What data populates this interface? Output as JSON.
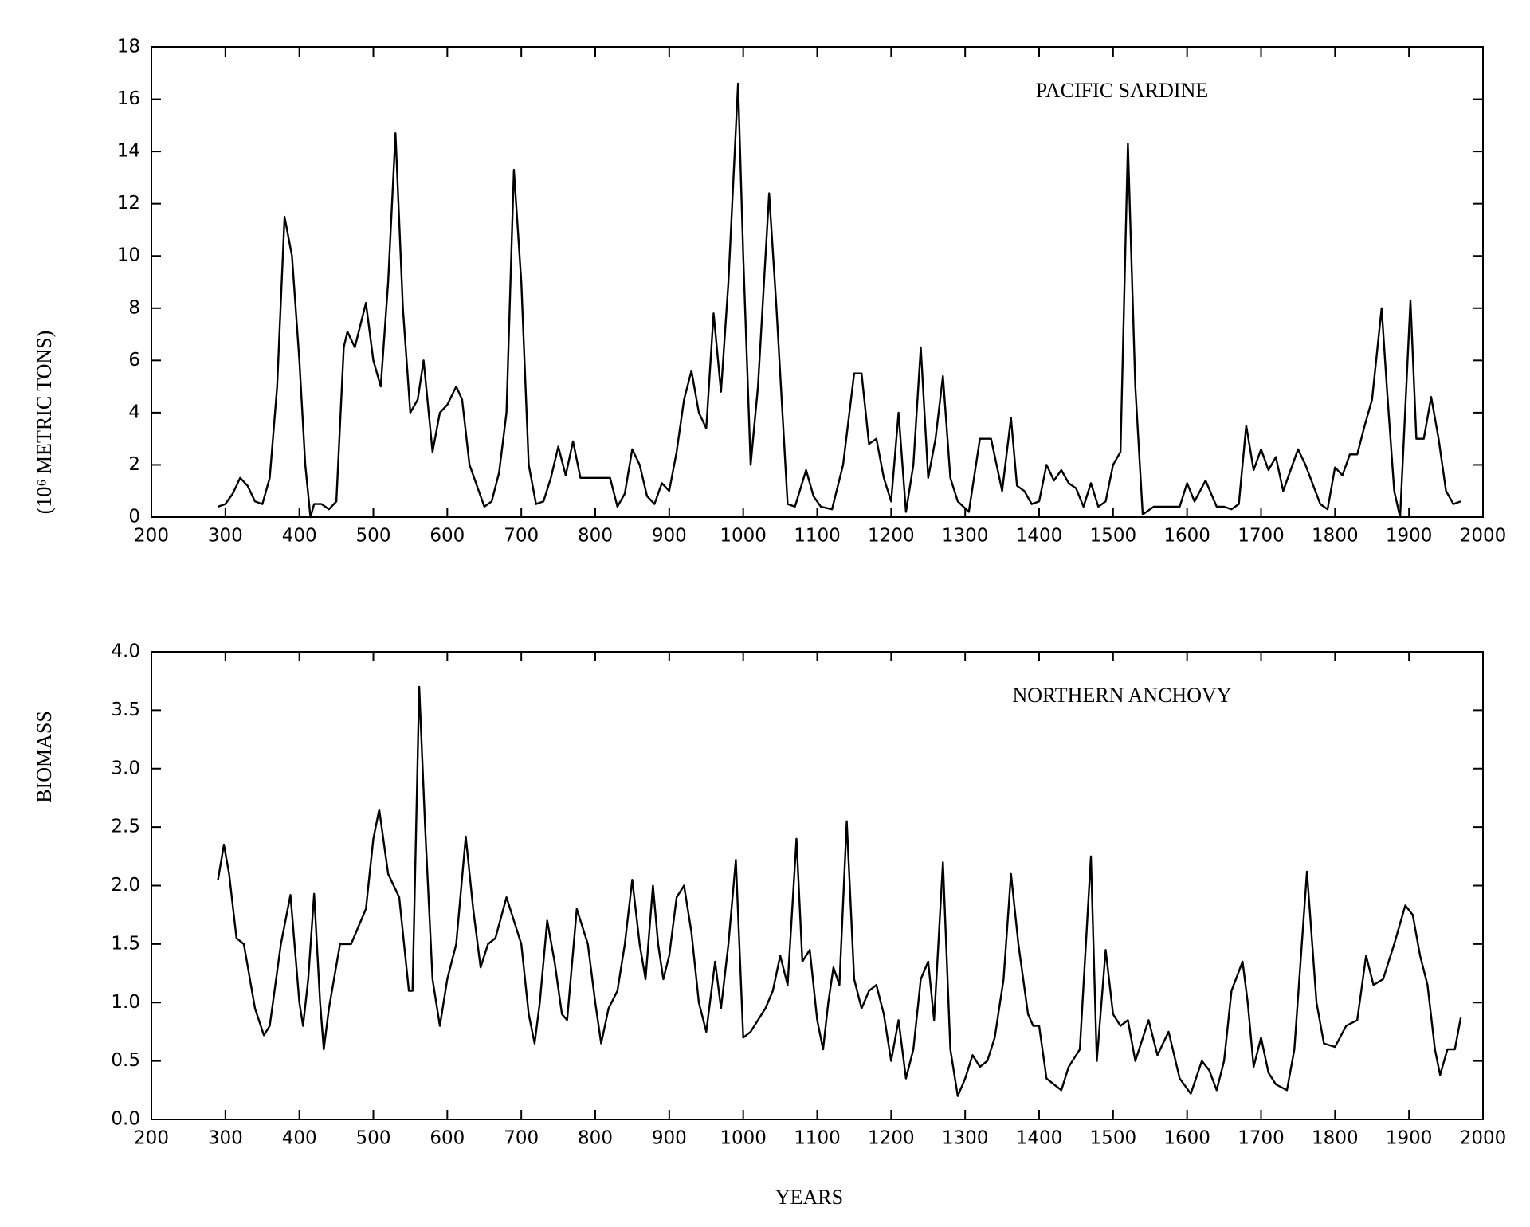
{
  "chart_data": [
    {
      "type": "line",
      "label": "PACIFIC SARDINE",
      "ylabel": [
        "BIOMASS",
        "(10⁶ METRIC TONS)"
      ],
      "xlim": [
        200,
        2000
      ],
      "xticks": [
        200,
        300,
        400,
        500,
        600,
        700,
        800,
        900,
        1000,
        1100,
        1200,
        1300,
        1400,
        1500,
        1600,
        1700,
        1800,
        1900,
        2000
      ],
      "ylim": [
        0,
        18
      ],
      "yticks": [
        0,
        2,
        4,
        6,
        8,
        10,
        12,
        14,
        16,
        18
      ],
      "series": [
        {
          "color": "#000000",
          "x": [
            290,
            300,
            310,
            320,
            330,
            340,
            350,
            360,
            370,
            380,
            390,
            400,
            408,
            415,
            420,
            430,
            440,
            450,
            460,
            465,
            475,
            490,
            500,
            510,
            520,
            530,
            540,
            550,
            560,
            568,
            580,
            590,
            600,
            612,
            620,
            630,
            650,
            660,
            670,
            680,
            690,
            700,
            710,
            720,
            730,
            740,
            750,
            760,
            770,
            780,
            800,
            820,
            830,
            840,
            850,
            860,
            870,
            880,
            890,
            900,
            910,
            920,
            930,
            940,
            950,
            960,
            970,
            980,
            993,
            1000,
            1010,
            1020,
            1035,
            1045,
            1060,
            1070,
            1085,
            1095,
            1105,
            1120,
            1135,
            1150,
            1160,
            1170,
            1180,
            1190,
            1200,
            1210,
            1220,
            1230,
            1240,
            1250,
            1260,
            1270,
            1280,
            1290,
            1305,
            1320,
            1335,
            1350,
            1362,
            1370,
            1380,
            1390,
            1400,
            1410,
            1420,
            1430,
            1440,
            1450,
            1460,
            1470,
            1480,
            1490,
            1500,
            1510,
            1520,
            1530,
            1540,
            1555,
            1570,
            1590,
            1600,
            1610,
            1625,
            1640,
            1650,
            1660,
            1670,
            1680,
            1690,
            1700,
            1710,
            1720,
            1730,
            1750,
            1760,
            1780,
            1790,
            1800,
            1810,
            1820,
            1830,
            1840,
            1850,
            1863,
            1870,
            1880,
            1888,
            1902,
            1910,
            1920,
            1930,
            1940,
            1950,
            1960,
            1970
          ],
          "values": [
            0.4,
            0.5,
            0.9,
            1.5,
            1.2,
            0.6,
            0.5,
            1.5,
            5,
            11.5,
            10,
            6,
            2,
            0,
            0.5,
            0.5,
            0.3,
            0.6,
            6.5,
            7.1,
            6.5,
            8.2,
            6,
            5,
            9,
            14.7,
            8,
            4,
            4.5,
            6,
            2.5,
            4,
            4.3,
            5,
            4.5,
            2,
            0.4,
            0.6,
            1.7,
            4,
            13.3,
            9,
            2,
            0.5,
            0.6,
            1.5,
            2.7,
            1.6,
            2.9,
            1.5,
            1.5,
            1.5,
            0.4,
            0.9,
            2.6,
            2,
            0.8,
            0.5,
            1.3,
            1,
            2.5,
            4.5,
            5.6,
            4,
            3.4,
            7.8,
            4.8,
            9,
            16.6,
            10,
            2,
            5,
            12.4,
            8,
            0.5,
            0.4,
            1.8,
            0.8,
            0.4,
            0.3,
            2,
            5.5,
            5.5,
            2.8,
            3,
            1.5,
            0.6,
            4,
            0.2,
            2,
            6.5,
            1.5,
            3,
            5.4,
            1.5,
            0.6,
            0.2,
            3,
            3,
            1,
            3.8,
            1.2,
            1,
            0.5,
            0.6,
            2,
            1.4,
            1.8,
            1.3,
            1.1,
            0.4,
            1.3,
            0.4,
            0.6,
            2,
            2.5,
            14.3,
            5,
            0.1,
            0.4,
            0.4,
            0.4,
            1.3,
            0.6,
            1.4,
            0.4,
            0.4,
            0.3,
            0.5,
            3.5,
            1.8,
            2.6,
            1.8,
            2.3,
            1,
            2.6,
            2,
            0.5,
            0.3,
            1.9,
            1.6,
            2.4,
            2.4,
            3.5,
            4.5,
            8,
            5,
            1,
            0,
            8.3,
            3,
            3,
            4.6,
            3,
            1,
            0.5,
            0.6
          ]
        }
      ]
    },
    {
      "type": "line",
      "label": "NORTHERN ANCHOVY",
      "xlabel": "YEARS",
      "xlim": [
        200,
        2000
      ],
      "xticks": [
        200,
        300,
        400,
        500,
        600,
        700,
        800,
        900,
        1000,
        1100,
        1200,
        1300,
        1400,
        1500,
        1600,
        1700,
        1800,
        1900,
        2000
      ],
      "ylim": [
        0,
        4
      ],
      "yticks": [
        {
          "value": 0,
          "label": "0.0"
        },
        {
          "value": 0.5,
          "label": "0.5"
        },
        {
          "value": 1,
          "label": "1.0"
        },
        {
          "value": 1.5,
          "label": "1.5"
        },
        {
          "value": 2,
          "label": "2.0"
        },
        {
          "value": 2.5,
          "label": "2.5"
        },
        {
          "value": 3,
          "label": "3.0"
        },
        {
          "value": 3.5,
          "label": "3.5"
        },
        {
          "value": 4,
          "label": "4.0"
        }
      ],
      "series": [
        {
          "color": "#000000",
          "x": [
            290,
            298,
            305,
            315,
            325,
            340,
            352,
            360,
            375,
            388,
            400,
            405,
            412,
            420,
            428,
            433,
            440,
            455,
            470,
            490,
            500,
            508,
            520,
            535,
            548,
            553,
            562,
            570,
            580,
            590,
            600,
            612,
            625,
            635,
            645,
            655,
            665,
            680,
            690,
            700,
            710,
            718,
            725,
            735,
            745,
            755,
            762,
            775,
            790,
            800,
            808,
            818,
            830,
            840,
            850,
            860,
            868,
            878,
            885,
            892,
            900,
            910,
            920,
            930,
            940,
            950,
            962,
            970,
            980,
            990,
            1000,
            1010,
            1030,
            1040,
            1050,
            1060,
            1072,
            1080,
            1090,
            1100,
            1108,
            1115,
            1122,
            1130,
            1140,
            1150,
            1160,
            1170,
            1180,
            1190,
            1200,
            1210,
            1220,
            1230,
            1240,
            1250,
            1258,
            1270,
            1280,
            1290,
            1300,
            1310,
            1320,
            1330,
            1340,
            1352,
            1362,
            1372,
            1385,
            1392,
            1400,
            1410,
            1420,
            1430,
            1440,
            1455,
            1470,
            1478,
            1490,
            1500,
            1510,
            1520,
            1530,
            1548,
            1560,
            1575,
            1590,
            1605,
            1620,
            1630,
            1640,
            1650,
            1660,
            1675,
            1682,
            1690,
            1700,
            1710,
            1720,
            1735,
            1745,
            1762,
            1775,
            1785,
            1800,
            1815,
            1830,
            1842,
            1852,
            1865,
            1880,
            1895,
            1905,
            1915,
            1925,
            1935,
            1942,
            1952,
            1962,
            1970
          ],
          "values": [
            2.05,
            2.35,
            2.1,
            1.55,
            1.5,
            0.95,
            0.72,
            0.8,
            1.5,
            1.92,
            1.0,
            0.8,
            1.2,
            1.93,
            1.0,
            0.6,
            0.95,
            1.5,
            1.5,
            1.8,
            2.4,
            2.65,
            2.1,
            1.9,
            1.1,
            1.1,
            3.7,
            2.5,
            1.2,
            0.8,
            1.2,
            1.5,
            2.42,
            1.8,
            1.3,
            1.5,
            1.55,
            1.9,
            1.7,
            1.5,
            0.9,
            0.65,
            1.0,
            1.7,
            1.35,
            0.9,
            0.85,
            1.8,
            1.5,
            1.0,
            0.65,
            0.95,
            1.1,
            1.5,
            2.05,
            1.5,
            1.2,
            2.0,
            1.5,
            1.2,
            1.4,
            1.9,
            2.0,
            1.6,
            1.0,
            0.75,
            1.35,
            0.95,
            1.5,
            2.22,
            0.7,
            0.75,
            0.95,
            1.1,
            1.4,
            1.15,
            2.4,
            1.35,
            1.45,
            0.85,
            0.6,
            1.0,
            1.3,
            1.15,
            2.55,
            1.2,
            0.95,
            1.1,
            1.15,
            0.9,
            0.5,
            0.85,
            0.35,
            0.6,
            1.2,
            1.35,
            0.85,
            2.2,
            0.6,
            0.2,
            0.35,
            0.55,
            0.45,
            0.5,
            0.7,
            1.2,
            2.1,
            1.5,
            0.9,
            0.8,
            0.8,
            0.35,
            0.3,
            0.25,
            0.45,
            0.6,
            2.25,
            0.5,
            1.45,
            0.9,
            0.8,
            0.85,
            0.5,
            0.85,
            0.55,
            0.75,
            0.35,
            0.22,
            0.5,
            0.42,
            0.25,
            0.5,
            1.1,
            1.35,
            1.0,
            0.45,
            0.7,
            0.4,
            0.3,
            0.25,
            0.6,
            2.12,
            1.0,
            0.65,
            0.62,
            0.8,
            0.85,
            1.4,
            1.15,
            1.2,
            1.5,
            1.83,
            1.75,
            1.4,
            1.15,
            0.6,
            0.38,
            0.6,
            0.6,
            0.87
          ]
        }
      ]
    }
  ]
}
